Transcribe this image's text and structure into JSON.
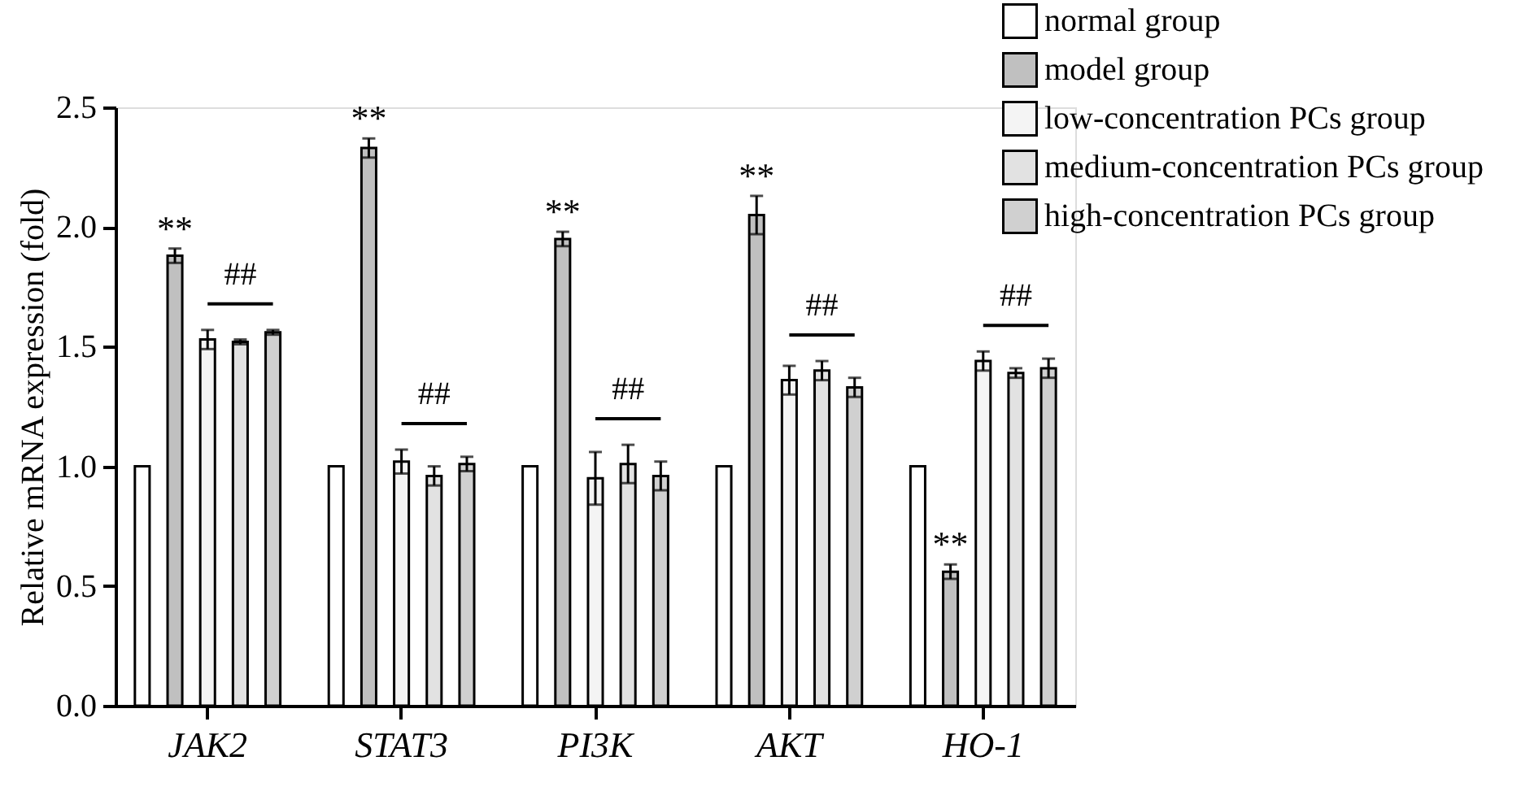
{
  "chart_data": {
    "type": "bar",
    "ylabel": "Relative mRNA expression (fold)",
    "categories": [
      "JAK2",
      "STAT3",
      "PI3K",
      "AKT",
      "HO-1"
    ],
    "series": [
      {
        "name": "normal group",
        "color": "#ffffff",
        "values": [
          1.0,
          1.0,
          1.0,
          1.0,
          1.0
        ]
      },
      {
        "name": "model group",
        "color": "#c0c0c0",
        "values": [
          1.88,
          2.33,
          1.95,
          2.05,
          0.56
        ],
        "errors": [
          0.03,
          0.04,
          0.03,
          0.08,
          0.03
        ]
      },
      {
        "name": "low-concentration PCs group",
        "color": "#f4f4f4",
        "values": [
          1.53,
          1.02,
          0.95,
          1.36,
          1.44
        ],
        "errors": [
          0.04,
          0.05,
          0.11,
          0.06,
          0.04
        ]
      },
      {
        "name": "medium-concentration PCs group",
        "color": "#e2e2e2",
        "values": [
          1.52,
          0.96,
          1.01,
          1.4,
          1.39
        ],
        "errors": [
          0.01,
          0.04,
          0.08,
          0.04,
          0.02
        ]
      },
      {
        "name": "high-concentration PCs group",
        "color": "#d0d0d0",
        "values": [
          1.56,
          1.01,
          0.96,
          1.33,
          1.41
        ],
        "errors": [
          0.01,
          0.03,
          0.06,
          0.04,
          0.04
        ]
      }
    ],
    "ylim": [
      0,
      2.5
    ],
    "yticks": [
      {
        "value": 0,
        "label": "0.0"
      },
      0.5,
      {
        "value": 1,
        "label": "1.0"
      },
      1.5,
      {
        "value": 2,
        "label": "2.0"
      },
      2.5
    ],
    "grid": false,
    "legend": "top right",
    "annotations": [
      "**",
      "**",
      "**",
      "**",
      "**",
      "##",
      "##",
      "##",
      "##",
      "##"
    ]
  }
}
